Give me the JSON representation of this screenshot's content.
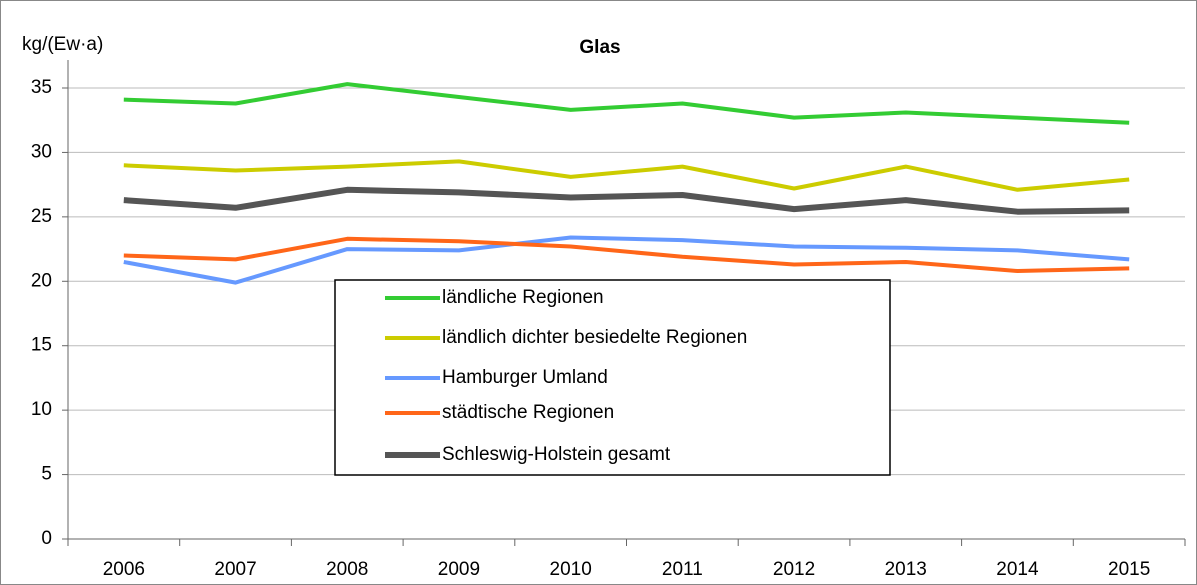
{
  "chart_data": {
    "type": "line",
    "title": "Glas",
    "y_label": "kg/(Ew·a)",
    "categories": [
      "2006",
      "2007",
      "2008",
      "2009",
      "2010",
      "2011",
      "2012",
      "2013",
      "2014",
      "2015"
    ],
    "series": [
      {
        "name": "ländliche Regionen",
        "color": "#33cc33",
        "values": [
          34.1,
          33.8,
          35.3,
          34.3,
          33.3,
          33.8,
          32.7,
          33.1,
          32.7,
          32.3
        ]
      },
      {
        "name": "ländlich dichter besiedelte Regionen",
        "color": "#cccc00",
        "values": [
          29.0,
          28.6,
          28.9,
          29.3,
          28.1,
          28.9,
          27.2,
          28.9,
          27.1,
          27.9
        ]
      },
      {
        "name": "Hamburger Umland",
        "color": "#6699ff",
        "values": [
          21.5,
          19.9,
          22.5,
          22.4,
          23.4,
          23.2,
          22.7,
          22.6,
          22.4,
          21.7
        ]
      },
      {
        "name": "städtische Regionen",
        "color": "#ff6619",
        "values": [
          22.0,
          21.7,
          23.3,
          23.1,
          22.7,
          21.9,
          21.3,
          21.5,
          20.8,
          21.0
        ]
      },
      {
        "name": "Schleswig-Holstein gesamt",
        "color": "#555555",
        "values": [
          26.3,
          25.7,
          27.1,
          26.9,
          26.5,
          26.7,
          25.6,
          26.3,
          25.4,
          25.5
        ]
      }
    ],
    "ylim": [
      0,
      35
    ],
    "yticks": [
      0,
      5,
      10,
      15,
      20,
      25,
      30,
      35
    ],
    "grid": true
  }
}
